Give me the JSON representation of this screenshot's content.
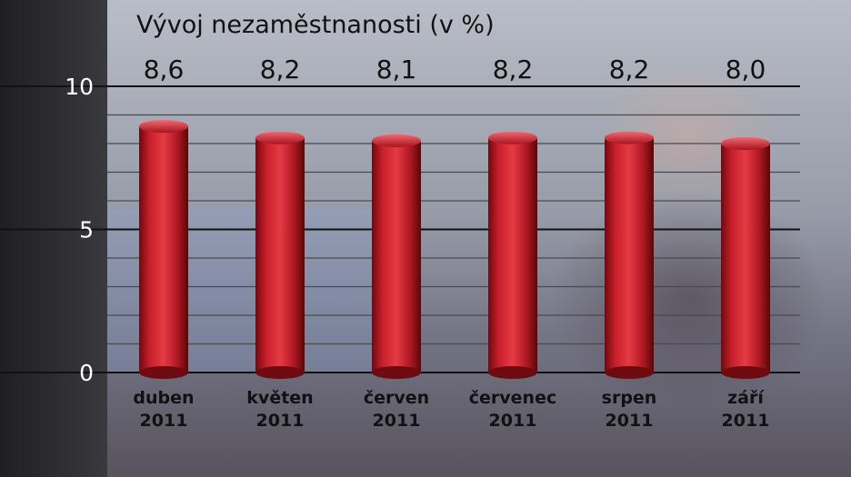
{
  "chart_data": {
    "type": "bar",
    "title": "Vývoj nezaměstnanosti (v %)",
    "categories": [
      [
        "duben",
        "2011"
      ],
      [
        "květen",
        "2011"
      ],
      [
        "červen",
        "2011"
      ],
      [
        "červenec",
        "2011"
      ],
      [
        "srpen",
        "2011"
      ],
      [
        "září",
        "2011"
      ]
    ],
    "values": [
      8.6,
      8.2,
      8.1,
      8.2,
      8.2,
      8.0
    ],
    "value_labels": [
      "8,6",
      "8,2",
      "8,1",
      "8,2",
      "8,2",
      "8,0"
    ],
    "yticks": [
      "0",
      "5",
      "10"
    ],
    "ylim": [
      0,
      10
    ],
    "grid": true,
    "colors": {
      "bar": "#c8202c",
      "bar_highlight": "#f06a72",
      "bar_shadow": "#6e0a10",
      "grid_major": "#111111",
      "grid_minor": "#4a4a4e",
      "text": "#111111",
      "ytick_text": "#ffffff"
    }
  }
}
